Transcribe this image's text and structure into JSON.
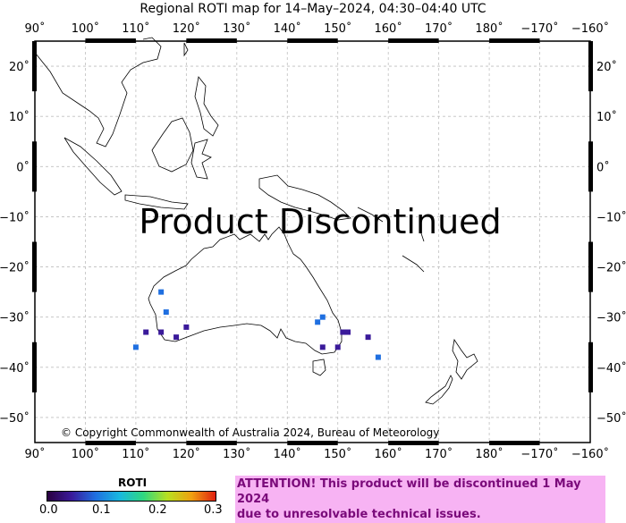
{
  "title": "Regional ROTI map for 14–May–2024, 04:30–04:40 UTC",
  "banner": "Product Discontinued",
  "copyright": "© Copyright Commonwealth of Australia 2024, Bureau of Meteorology",
  "attention_line1": "ATTENTION! This product will be discontinued 1 May 2024",
  "attention_line2": "due to unresolvable technical issues.",
  "lon_ticks": [
    "90˚",
    "100˚",
    "110˚",
    "120˚",
    "130˚",
    "140˚",
    "150˚",
    "160˚",
    "170˚",
    "180˚",
    "−170˚",
    "−160˚"
  ],
  "lat_ticks": [
    "20˚",
    "10˚",
    "0˚",
    "−10˚",
    "−20˚",
    "−30˚",
    "−40˚",
    "−50˚"
  ],
  "colorbar": {
    "label": "ROTI",
    "ticks": [
      "0.0",
      "0.1",
      "0.2",
      "0.3"
    ],
    "range": [
      0,
      0.3
    ],
    "colors": [
      "#2a0040",
      "#3a1a9a",
      "#1f6fe0",
      "#18b8e0",
      "#30d880",
      "#b8e020",
      "#f0a010",
      "#e02010"
    ]
  },
  "extent": {
    "lon": [
      90,
      200
    ],
    "lat": [
      -55,
      25
    ]
  },
  "colors": {
    "frame": "#000000",
    "grid": "#bfbfbf",
    "coast": "#000000",
    "attention_bg": "#f7b3f3",
    "attention_text": "#7a0a7a"
  },
  "observations": [
    {
      "lon": 115,
      "lat": -25,
      "roti": 0.1
    },
    {
      "lon": 116,
      "lat": -29,
      "roti": 0.1
    },
    {
      "lon": 110,
      "lat": -36,
      "roti": 0.1
    },
    {
      "lon": 112,
      "lat": -33,
      "roti": 0.03
    },
    {
      "lon": 115,
      "lat": -33,
      "roti": 0.03
    },
    {
      "lon": 118,
      "lat": -34,
      "roti": 0.03
    },
    {
      "lon": 120,
      "lat": -32,
      "roti": 0.03
    },
    {
      "lon": 147,
      "lat": -30,
      "roti": 0.1
    },
    {
      "lon": 146,
      "lat": -31,
      "roti": 0.1
    },
    {
      "lon": 151,
      "lat": -33,
      "roti": 0.03
    },
    {
      "lon": 152,
      "lat": -33,
      "roti": 0.03
    },
    {
      "lon": 150,
      "lat": -36,
      "roti": 0.03
    },
    {
      "lon": 147,
      "lat": -36,
      "roti": 0.03
    },
    {
      "lon": 156,
      "lat": -34,
      "roti": 0.03
    },
    {
      "lon": 158,
      "lat": -38,
      "roti": 0.1
    }
  ]
}
